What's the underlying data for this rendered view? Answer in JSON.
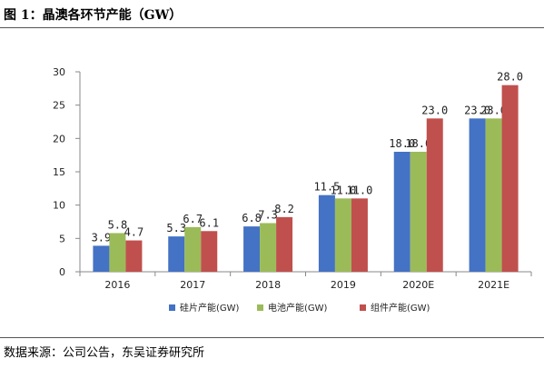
{
  "figure": {
    "title": "图 1：晶澳各环节产能（GW）",
    "source": "数据来源：公司公告，东吴证券研究所"
  },
  "chart_data": {
    "type": "bar",
    "categories": [
      "2016",
      "2017",
      "2018",
      "2019",
      "2020E",
      "2021E"
    ],
    "series": [
      {
        "name": "硅片产能(GW)",
        "color": "#4472C4",
        "values": [
          3.9,
          5.3,
          6.8,
          11.5,
          18.0,
          23.0
        ],
        "labels": [
          "3.9",
          "5.3",
          "6.8",
          "11.5",
          "18.0",
          "23.0"
        ]
      },
      {
        "name": "电池产能(GW)",
        "color": "#9BBB59",
        "values": [
          5.8,
          6.7,
          7.3,
          11.0,
          18.0,
          23.0
        ],
        "labels": [
          "5.8",
          "6.7",
          "7.3",
          "11.0",
          "18.0",
          "23.0"
        ]
      },
      {
        "name": "组件产能(GW)",
        "color": "#C0504D",
        "values": [
          4.7,
          6.1,
          8.2,
          11.0,
          23.0,
          28.0
        ],
        "labels": [
          "4.7",
          "6.1",
          "8.2",
          "11.0",
          "23.0",
          "28.0"
        ]
      }
    ],
    "ylim": [
      0,
      30
    ],
    "yticks": [
      0,
      5,
      10,
      15,
      20,
      25,
      30
    ],
    "xlabel": "",
    "ylabel": "",
    "grid": false,
    "legend_position": "bottom"
  }
}
